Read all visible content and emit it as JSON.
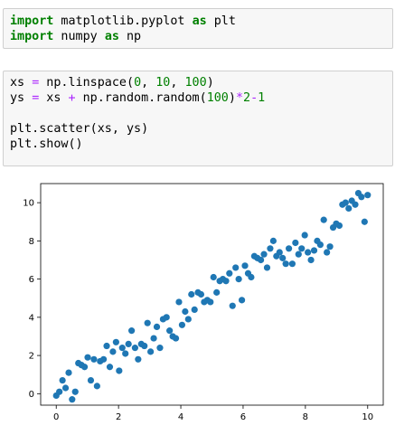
{
  "cells": [
    {
      "lines": [
        [
          [
            "kw",
            "import"
          ],
          [
            "txt",
            " matplotlib.pyplot "
          ],
          [
            "kw",
            "as"
          ],
          [
            "txt",
            " plt"
          ]
        ],
        [
          [
            "kw",
            "import"
          ],
          [
            "txt",
            " numpy "
          ],
          [
            "kw",
            "as"
          ],
          [
            "txt",
            " np"
          ]
        ]
      ]
    },
    {
      "lines": [
        [
          [
            "txt",
            "xs "
          ],
          [
            "op",
            "="
          ],
          [
            "txt",
            " np.linspace("
          ],
          [
            "num",
            "0"
          ],
          [
            "txt",
            ", "
          ],
          [
            "num",
            "10"
          ],
          [
            "txt",
            ", "
          ],
          [
            "num",
            "100"
          ],
          [
            "txt",
            ")"
          ]
        ],
        [
          [
            "txt",
            "ys "
          ],
          [
            "op",
            "="
          ],
          [
            "txt",
            " xs "
          ],
          [
            "op",
            "+"
          ],
          [
            "txt",
            " np.random.random("
          ],
          [
            "num",
            "100"
          ],
          [
            "txt",
            ")"
          ],
          [
            "op",
            "*"
          ],
          [
            "num",
            "2"
          ],
          [
            "op",
            "-"
          ],
          [
            "num",
            "1"
          ]
        ],
        [
          [
            "txt",
            ""
          ]
        ],
        [
          [
            "txt",
            "plt.scatter(xs, ys)"
          ]
        ],
        [
          [
            "txt",
            "plt.show()"
          ]
        ]
      ]
    }
  ],
  "colors": {
    "keyword": "#008000",
    "operator": "#aa22ff",
    "number": "#008000",
    "marker": "#1f77b4",
    "cell_bg": "#f7f7f7",
    "cell_border": "#cfcfcf"
  },
  "chart_data": {
    "type": "scatter",
    "title": "",
    "xlabel": "",
    "ylabel": "",
    "xlim": [
      -0.5,
      10.5
    ],
    "ylim": [
      -0.6,
      11.0
    ],
    "xticks": [
      0,
      2,
      4,
      6,
      8,
      10
    ],
    "yticks": [
      0,
      2,
      4,
      6,
      8,
      10
    ],
    "grid": false,
    "series": [
      {
        "x": [
          0.0,
          0.1,
          0.2,
          0.3,
          0.4,
          0.51,
          0.61,
          0.71,
          0.81,
          0.91,
          1.01,
          1.11,
          1.21,
          1.31,
          1.41,
          1.52,
          1.62,
          1.72,
          1.82,
          1.92,
          2.02,
          2.12,
          2.22,
          2.32,
          2.42,
          2.53,
          2.63,
          2.73,
          2.83,
          2.93,
          3.03,
          3.13,
          3.23,
          3.33,
          3.43,
          3.54,
          3.64,
          3.74,
          3.84,
          3.94,
          4.04,
          4.14,
          4.24,
          4.34,
          4.44,
          4.55,
          4.65,
          4.75,
          4.85,
          4.95,
          5.05,
          5.15,
          5.25,
          5.35,
          5.45,
          5.56,
          5.66,
          5.76,
          5.86,
          5.96,
          6.06,
          6.16,
          6.26,
          6.36,
          6.46,
          6.57,
          6.67,
          6.77,
          6.87,
          6.97,
          7.07,
          7.17,
          7.27,
          7.37,
          7.47,
          7.58,
          7.68,
          7.78,
          7.88,
          7.98,
          8.08,
          8.18,
          8.28,
          8.38,
          8.48,
          8.59,
          8.69,
          8.79,
          8.89,
          8.99,
          9.09,
          9.19,
          9.29,
          9.39,
          9.49,
          9.6,
          9.7,
          9.8,
          9.9,
          10.0
        ],
        "y": [
          -0.1,
          0.1,
          0.7,
          0.3,
          1.1,
          -0.3,
          0.1,
          1.6,
          1.5,
          1.4,
          1.9,
          0.7,
          1.8,
          0.4,
          1.7,
          1.8,
          2.5,
          1.4,
          2.2,
          2.7,
          1.2,
          2.4,
          2.1,
          2.6,
          3.3,
          2.4,
          1.8,
          2.6,
          2.5,
          3.7,
          2.2,
          2.9,
          3.5,
          2.4,
          3.9,
          4.0,
          3.3,
          3.0,
          2.9,
          4.8,
          3.6,
          4.3,
          3.9,
          5.2,
          4.4,
          5.3,
          5.2,
          4.8,
          4.9,
          4.8,
          6.1,
          5.3,
          5.9,
          6.0,
          5.9,
          6.3,
          4.6,
          6.6,
          6.0,
          4.9,
          6.7,
          6.3,
          6.1,
          7.2,
          7.1,
          7.0,
          7.3,
          6.6,
          7.6,
          8.0,
          7.2,
          7.4,
          7.1,
          6.8,
          7.6,
          6.8,
          7.9,
          7.3,
          7.6,
          8.3,
          7.4,
          7.0,
          7.5,
          8.0,
          7.8,
          9.1,
          7.4,
          7.7,
          8.7,
          8.9,
          8.8,
          9.9,
          10.0,
          9.7,
          10.1,
          9.9,
          10.5,
          10.3,
          9.0,
          10.4
        ]
      }
    ]
  }
}
